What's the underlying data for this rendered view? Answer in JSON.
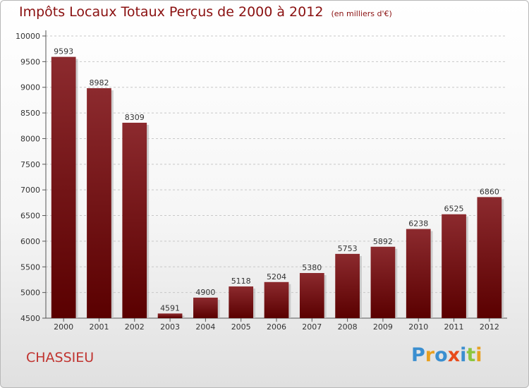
{
  "title": "Impôts Locaux Totaux Perçus de 2000 à 2012",
  "unit_note": "(en milliers d'€)",
  "commune": "CHASSIEU",
  "logo": {
    "text": "Proxiti",
    "letters": [
      {
        "ch": "P",
        "color": "#3b8fd0"
      },
      {
        "ch": "r",
        "color": "#e8a020"
      },
      {
        "ch": "o",
        "color": "#3b8fd0"
      },
      {
        "ch": "x",
        "color": "#e84a1a"
      },
      {
        "ch": "i",
        "color": "#3b8fd0"
      },
      {
        "ch": "t",
        "color": "#8cc63f"
      },
      {
        "ch": "i",
        "color": "#e8a020"
      }
    ]
  },
  "colors": {
    "bar_top": "#8c2a2e",
    "bar_bottom": "#5a0000",
    "title": "#8a1010",
    "commune": "#c0332f"
  },
  "chart_data": {
    "type": "bar",
    "categories": [
      "2000",
      "2001",
      "2002",
      "2003",
      "2004",
      "2005",
      "2006",
      "2007",
      "2008",
      "2009",
      "2010",
      "2011",
      "2012"
    ],
    "values": [
      9593,
      8982,
      8309,
      4591,
      4900,
      5118,
      5204,
      5380,
      5753,
      5892,
      6238,
      6525,
      6860
    ],
    "ylim": [
      4500,
      10000
    ],
    "yticks": [
      4500,
      5000,
      5500,
      6000,
      6500,
      7000,
      7500,
      8000,
      8500,
      9000,
      9500,
      10000
    ],
    "grid": "dashed horizontal",
    "data_labels": true
  }
}
